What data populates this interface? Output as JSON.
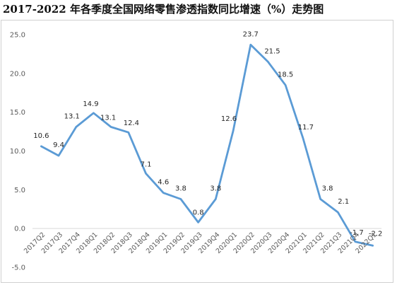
{
  "chart_data": {
    "type": "line",
    "title": "2017-2022 年各季度全国网络零售渗透指数同比增速（%）走势图",
    "xlabel": "",
    "ylabel": "",
    "ylim": [
      -5,
      25
    ],
    "yticks": [
      "25.0",
      "20.0",
      "15.0",
      "10.0",
      "5.0",
      "0.0",
      "-5.0"
    ],
    "grid": false,
    "legend": "none",
    "categories": [
      "2017Q2",
      "2017Q3",
      "2017Q4",
      "2018Q1",
      "2018Q2",
      "2018Q3",
      "2018Q4",
      "2019Q1",
      "2019Q2",
      "2019Q3",
      "2019Q4",
      "2020Q1",
      "2020Q2",
      "2020Q3",
      "2020Q4",
      "2021Q1",
      "2021Q2",
      "2021Q3",
      "2021Q4",
      "2022Q1"
    ],
    "series": [
      {
        "values": [
          10.6,
          9.4,
          13.1,
          14.9,
          13.1,
          12.4,
          7.1,
          4.6,
          3.8,
          0.8,
          3.8,
          12.6,
          23.7,
          21.5,
          18.5,
          11.7,
          3.8,
          2.1,
          -1.7,
          -2.2
        ],
        "labels": [
          "10.6",
          "9.4",
          "13.1",
          "14.9",
          "13.1",
          "12.4",
          "7.1",
          "4.6",
          "3.8",
          "0.8",
          "3.8",
          "12.6",
          "23.7",
          "21.5",
          "18.5",
          "11.7",
          "3.8",
          "2.1",
          "-1.7",
          "-2.2"
        ],
        "color": "#5b9bd5"
      }
    ]
  }
}
